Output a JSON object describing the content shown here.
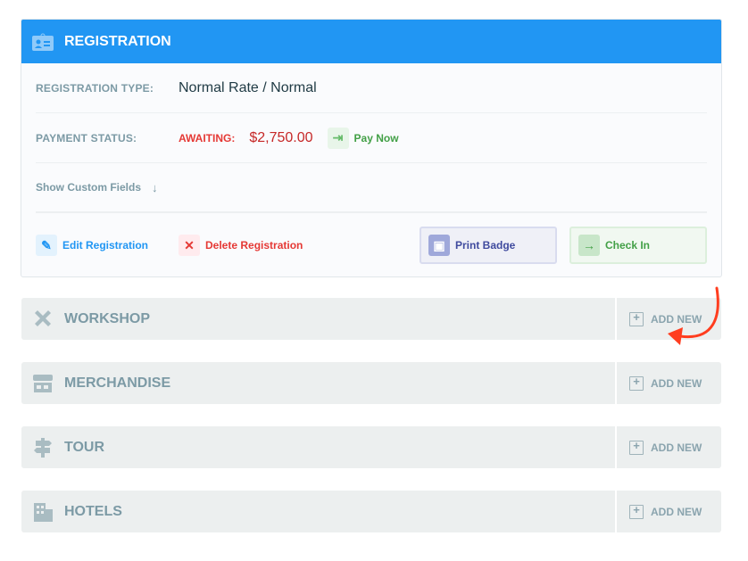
{
  "registration": {
    "title": "REGISTRATION",
    "type_label": "REGISTRATION TYPE:",
    "type_value": "Normal Rate / Normal",
    "payment_label": "PAYMENT STATUS:",
    "payment_status": "AWAITING:",
    "amount": "$2,750.00",
    "pay_now": "Pay Now",
    "show_custom": "Show Custom Fields",
    "edit": "Edit Registration",
    "delete": "Delete Registration",
    "print_badge": "Print Badge",
    "check_in": "Check In"
  },
  "sections": [
    {
      "name": "WORKSHOP",
      "icon": "tools-icon",
      "add": "ADD NEW"
    },
    {
      "name": "MERCHANDISE",
      "icon": "store-icon",
      "add": "ADD NEW"
    },
    {
      "name": "TOUR",
      "icon": "signpost-icon",
      "add": "ADD NEW"
    },
    {
      "name": "HOTELS",
      "icon": "building-icon",
      "add": "ADD NEW"
    }
  ],
  "colors": {
    "header": "#2196f3",
    "awaiting": "#e53935",
    "success": "#43a047",
    "annotation_arrow": "#ff3d1f"
  }
}
